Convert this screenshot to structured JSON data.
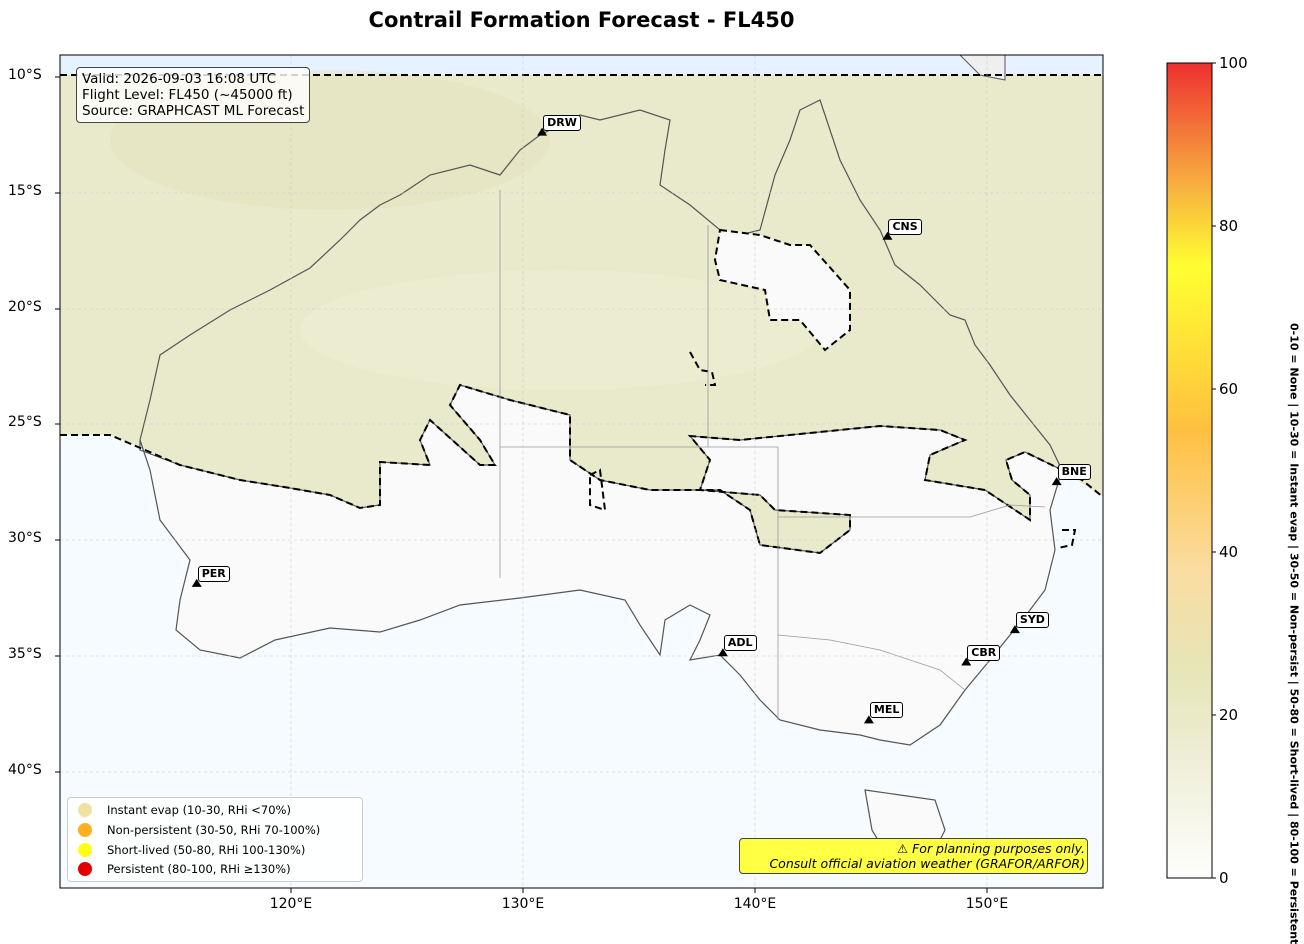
{
  "title": "Contrail Formation Forecast - FL450",
  "info": {
    "valid": "Valid: 2026-09-03 16:08 UTC",
    "flight_level": "Flight Level: FL450 (~45000 ft)",
    "source": "Source: GRAPHCAST ML Forecast"
  },
  "axes": {
    "y_ticks": [
      "10°S",
      "15°S",
      "20°S",
      "25°S",
      "30°S",
      "35°S",
      "40°S"
    ],
    "x_ticks": [
      "120°E",
      "130°E",
      "140°E",
      "150°E"
    ],
    "lon_range": [
      110,
      155
    ],
    "lat_range": [
      -45,
      -9
    ]
  },
  "cities": [
    {
      "code": "DRW",
      "lon": 130.8,
      "lat": -12.4
    },
    {
      "code": "CNS",
      "lon": 145.7,
      "lat": -16.9
    },
    {
      "code": "BNE",
      "lon": 153.0,
      "lat": -27.5
    },
    {
      "code": "PER",
      "lon": 115.9,
      "lat": -31.9
    },
    {
      "code": "SYD",
      "lon": 151.2,
      "lat": -33.9
    },
    {
      "code": "ADL",
      "lon": 138.6,
      "lat": -34.9
    },
    {
      "code": "CBR",
      "lon": 149.1,
      "lat": -35.3
    },
    {
      "code": "MEL",
      "lon": 144.9,
      "lat": -37.8
    }
  ],
  "legend": [
    {
      "label": "Instant evap (10-30, RHi <70%)",
      "color": "#f0e2a0"
    },
    {
      "label": "Non-persistent (30-50, RHi 70-100%)",
      "color": "#ffb020"
    },
    {
      "label": "Short-lived (50-80, RHi 100-130%)",
      "color": "#ffff10"
    },
    {
      "label": "Persistent (80-100, RHi ≥130%)",
      "color": "#e00000"
    }
  ],
  "disclaimer": {
    "line1": "⚠ For planning purposes only.",
    "line2": "Consult official aviation weather (GRAFOR/ARFOR)"
  },
  "colorbar": {
    "ticks": [
      "0",
      "20",
      "40",
      "60",
      "80",
      "100"
    ],
    "range": [
      0,
      100
    ],
    "label": "0-10 = None  |  10-30 = Instant evap  |  30-50 = Non-persist  |  50-80 = Short-lived  |  80-100 = Persistent"
  }
}
